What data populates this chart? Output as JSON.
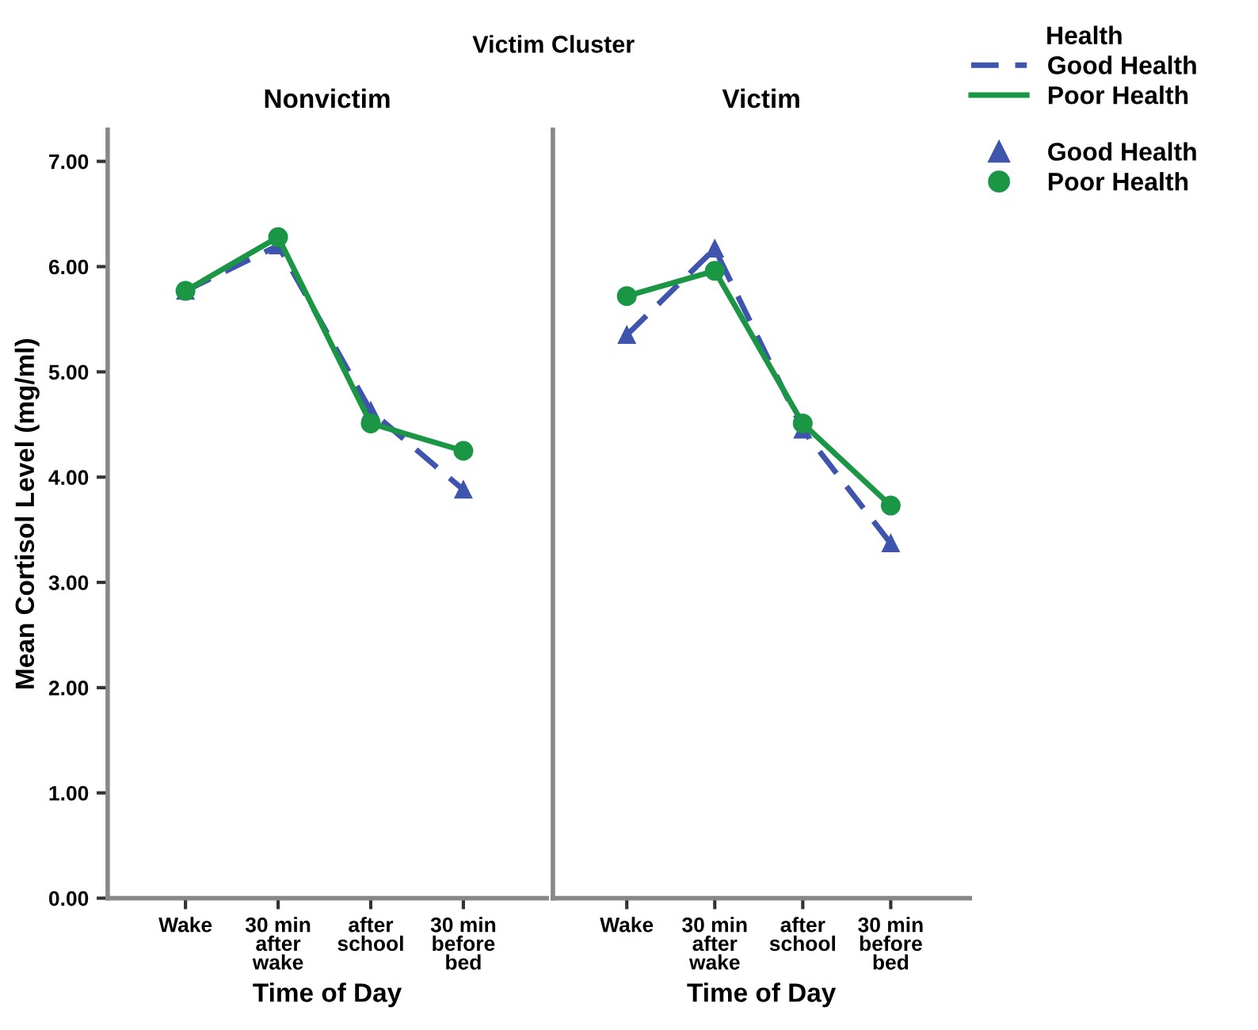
{
  "chart_data": [
    {
      "type": "line",
      "title": "Nonvictim",
      "xlabel": "Time of Day",
      "ylabel": "Mean Cortisol Level (mg/ml)",
      "annotations": [
        "Victim Cluster"
      ],
      "categories": [
        "Wake",
        "30 min\nafter\nwake",
        "after\nschool",
        "30 min\nbefore\nbed"
      ],
      "series": [
        {
          "name": "Good Health",
          "color": "#3f55ad",
          "values": [
            5.77,
            6.2,
            4.63,
            3.88
          ],
          "marker": "triangle",
          "line_style": "dashed"
        },
        {
          "name": "Poor Health",
          "color": "#1a9645",
          "values": [
            5.77,
            6.28,
            4.51,
            4.25
          ],
          "marker": "circle",
          "line_style": "solid"
        }
      ],
      "ylim": [
        0,
        7.3
      ],
      "yticks": [
        {
          "value": 0,
          "label": "0.00"
        },
        {
          "value": 1,
          "label": "1.00"
        },
        {
          "value": 2,
          "label": "2.00"
        },
        {
          "value": 3,
          "label": "3.00"
        },
        {
          "value": 4,
          "label": "4.00"
        },
        {
          "value": 5,
          "label": "5.00"
        },
        {
          "value": 6,
          "label": "6.00"
        },
        {
          "value": 7,
          "label": "7.00"
        }
      ],
      "grid": false,
      "legend": "right"
    },
    {
      "type": "line",
      "title": "Victim",
      "xlabel": "Time of Day",
      "legend_title": "Health",
      "categories": [
        "Wake",
        "30 min\nafter\nwake",
        "after\nschool",
        "30 min\nbefore\nbed"
      ],
      "series": [
        {
          "name": "Good Health",
          "color": "#3f55ad",
          "values": [
            5.35,
            6.17,
            4.45,
            3.37
          ],
          "marker": "triangle",
          "line_style": "dashed"
        },
        {
          "name": "Poor Health",
          "color": "#1a9645",
          "values": [
            5.72,
            5.96,
            4.51,
            3.73
          ],
          "marker": "circle",
          "line_style": "solid"
        }
      ],
      "ylim": [
        0,
        7.3
      ],
      "tick_labels": "x",
      "grid": false,
      "legend": "right"
    }
  ]
}
